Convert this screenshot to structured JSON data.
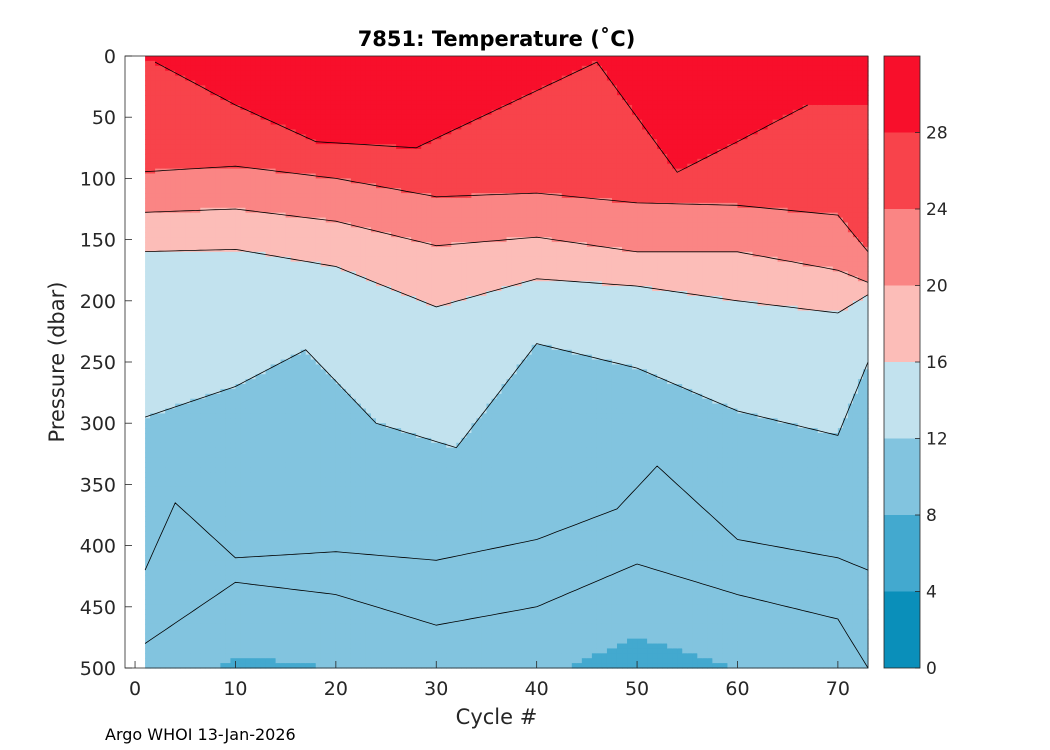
{
  "chart_data": {
    "type": "heatmap",
    "title": "7851:  Temperature (˚C)",
    "xlabel": "Cycle #",
    "ylabel": "Pressure (dbar)",
    "xlim": [
      -1,
      73
    ],
    "ylim": [
      0,
      500
    ],
    "x_ticks": [
      0,
      10,
      20,
      30,
      40,
      50,
      60,
      70
    ],
    "y_ticks": [
      0,
      50,
      100,
      150,
      200,
      250,
      300,
      350,
      400,
      450,
      500
    ],
    "colorbar": {
      "levels": [
        0,
        4,
        8,
        12,
        16,
        20,
        24,
        28,
        32
      ],
      "ticks": [
        0,
        4,
        8,
        12,
        16,
        20,
        24,
        28
      ],
      "colors": [
        "#0a8fba",
        "#43a9cf",
        "#82c4df",
        "#c2e2ee",
        "#fcbdb8",
        "#fa8584",
        "#f8434b",
        "#f80f2b"
      ]
    },
    "isotherms": [
      {
        "temp": 28,
        "cycles": [
          2,
          10,
          18,
          28,
          46,
          54,
          60,
          67
        ],
        "pressure": [
          5,
          40,
          70,
          75,
          5,
          95,
          70,
          40
        ]
      },
      {
        "temp": 24,
        "cycles": [
          0,
          10,
          20,
          30,
          40,
          50,
          60,
          70,
          73
        ],
        "pressure": [
          95,
          90,
          100,
          115,
          112,
          120,
          122,
          130,
          160
        ]
      },
      {
        "temp": 20,
        "cycles": [
          0,
          10,
          20,
          30,
          40,
          50,
          60,
          70,
          73
        ],
        "pressure": [
          128,
          125,
          135,
          155,
          148,
          160,
          160,
          175,
          185
        ]
      },
      {
        "temp": 16,
        "cycles": [
          0,
          10,
          20,
          30,
          40,
          50,
          60,
          70,
          73
        ],
        "pressure": [
          160,
          158,
          172,
          205,
          182,
          188,
          200,
          210,
          195
        ]
      },
      {
        "temp": 12,
        "cycles": [
          1,
          10,
          17,
          24,
          32,
          40,
          50,
          60,
          70,
          73
        ],
        "pressure": [
          295,
          270,
          240,
          300,
          320,
          235,
          255,
          290,
          310,
          250
        ]
      },
      {
        "temp": 10,
        "cycles": [
          1,
          4,
          10,
          20,
          30,
          40,
          48,
          52,
          60,
          70,
          73
        ],
        "pressure": [
          420,
          365,
          410,
          405,
          412,
          395,
          370,
          335,
          395,
          410,
          420
        ]
      },
      {
        "temp": 9,
        "cycles": [
          1,
          10,
          20,
          30,
          40,
          50,
          60,
          70,
          73
        ],
        "pressure": [
          480,
          430,
          440,
          465,
          450,
          415,
          440,
          460,
          500
        ]
      }
    ]
  },
  "credit": "Argo WHOI 13-Jan-2026"
}
